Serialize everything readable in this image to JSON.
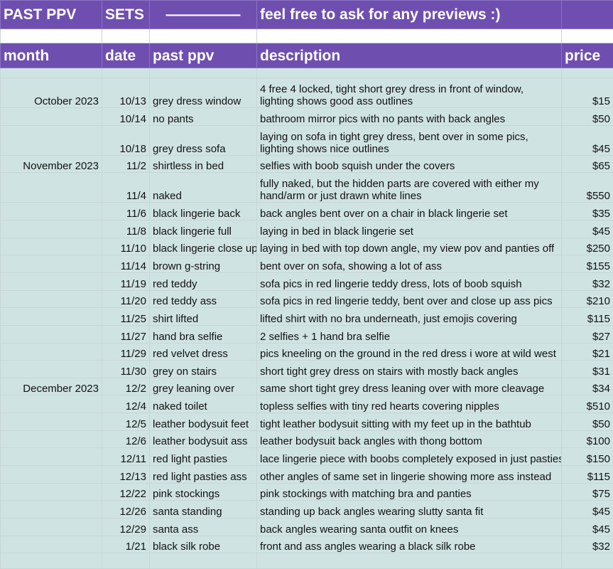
{
  "header": {
    "title_a": "PAST PPV",
    "title_b": "SETS",
    "dashes": "—————",
    "note": "feel free to ask for any previews :)"
  },
  "columns": {
    "month": "month",
    "date": "date",
    "name": "past ppv",
    "description": "description",
    "price": "price"
  },
  "rows": [
    {
      "month": "October 2023",
      "date": "10/13",
      "name": "grey dress window",
      "description": "4 free 4 locked, tight short grey dress in front of window, lighting shows good ass outlines",
      "price": "$15"
    },
    {
      "month": "",
      "date": "10/14",
      "name": "no pants",
      "description": "bathroom mirror pics with no pants with back angles",
      "price": "$50"
    },
    {
      "month": "",
      "date": "10/18",
      "name": "grey dress sofa",
      "description": "laying on sofa in tight grey dress, bent over in some pics, lighting shows nice outlines",
      "price": "$45"
    },
    {
      "month": "November 2023",
      "date": "11/2",
      "name": "shirtless in bed",
      "description": "selfies with boob squish under the covers",
      "price": "$65"
    },
    {
      "month": "",
      "date": "11/4",
      "name": "naked",
      "description": "fully naked, but the hidden parts are covered with either my hand/arm or just drawn white lines",
      "price": "$550"
    },
    {
      "month": "",
      "date": "11/6",
      "name": "black lingerie back",
      "description": "back angles bent over on a chair in black lingerie set",
      "price": "$35"
    },
    {
      "month": "",
      "date": "11/8",
      "name": "black lingerie full",
      "description": "laying in bed in black lingerie set",
      "price": "$45"
    },
    {
      "month": "",
      "date": "11/10",
      "name": "black lingerie close up",
      "description": "laying in bed with top down angle, my view pov and panties off",
      "price": "$250"
    },
    {
      "month": "",
      "date": "11/14",
      "name": "brown g-string",
      "description": "bent over on sofa, showing a lot of ass",
      "price": "$155"
    },
    {
      "month": "",
      "date": "11/19",
      "name": "red teddy",
      "description": "sofa pics in red lingerie teddy dress, lots of boob squish",
      "price": "$32"
    },
    {
      "month": "",
      "date": "11/20",
      "name": "red teddy ass",
      "description": "sofa pics in red lingerie teddy, bent over and close up ass pics",
      "price": "$210"
    },
    {
      "month": "",
      "date": "11/25",
      "name": "shirt lifted",
      "description": "lifted shirt with no bra underneath, just emojis covering",
      "price": "$115"
    },
    {
      "month": "",
      "date": "11/27",
      "name": "hand bra selfie",
      "description": "2 selfies + 1 hand bra selfie",
      "price": "$27"
    },
    {
      "month": "",
      "date": "11/29",
      "name": "red velvet dress",
      "description": "pics kneeling on the ground in the red dress i wore at wild west",
      "price": "$21"
    },
    {
      "month": "",
      "date": "11/30",
      "name": "grey on stairs",
      "description": "short tight grey dress on stairs with mostly back angles",
      "price": "$31"
    },
    {
      "month": "December 2023",
      "date": "12/2",
      "name": "grey leaning over",
      "description": "same short tight grey dress leaning over with more cleavage",
      "price": "$34"
    },
    {
      "month": "",
      "date": "12/4",
      "name": "naked toilet",
      "description": "topless selfies with tiny red hearts covering nipples",
      "price": "$510"
    },
    {
      "month": "",
      "date": "12/5",
      "name": "leather bodysuit feet",
      "description": "tight leather bodysuit sitting with my feet up in the bathtub",
      "price": "$50"
    },
    {
      "month": "",
      "date": "12/6",
      "name": "leather bodysuit ass",
      "description": "leather bodysuit back angles with thong bottom",
      "price": "$100"
    },
    {
      "month": "",
      "date": "12/11",
      "name": "red light pasties",
      "description": "lace lingerie piece with boobs completely exposed in just pasties",
      "price": "$150"
    },
    {
      "month": "",
      "date": "12/13",
      "name": "red light pasties ass",
      "description": "other angles of same set in lingerie showing more ass instead",
      "price": "$115"
    },
    {
      "month": "",
      "date": "12/22",
      "name": "pink stockings",
      "description": "pink stockings with matching bra and panties",
      "price": "$75"
    },
    {
      "month": "",
      "date": "12/26",
      "name": "santa standing",
      "description": "standing up back angles wearing slutty santa fit",
      "price": "$45"
    },
    {
      "month": "",
      "date": "12/29",
      "name": "santa ass",
      "description": "back angles wearing santa outfit on knees",
      "price": "$45"
    },
    {
      "month": "",
      "date": "1/21",
      "name": "black silk robe",
      "description": "front and ass angles wearing a black silk robe",
      "price": "$32"
    }
  ],
  "colors": {
    "header_bg": "#6e4fb0",
    "header_text": "#ffffff",
    "cell_bg": "#d0e3e3",
    "grid": "#c8d6d6"
  }
}
